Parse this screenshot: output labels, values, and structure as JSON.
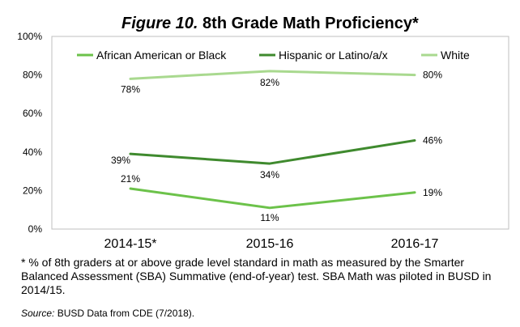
{
  "title_prefix": "Figure 10.",
  "title_main": " 8th Grade Math Proficiency*",
  "footnote": "* % of 8th graders at or above grade level standard in math as measured by the Smarter Balanced Assessment (SBA) Summative (end-of-year) test. SBA Math was piloted in BUSD in 2014/15.",
  "source_label": "Source:",
  "source_text": " BUSD Data from CDE (7/2018).",
  "chart_data": {
    "type": "line",
    "title": "Figure 10. 8th Grade Math Proficiency*",
    "categories": [
      "2014-15*",
      "2015-16",
      "2016-17"
    ],
    "ylim": [
      0,
      100
    ],
    "yticks": [
      0,
      20,
      40,
      60,
      80,
      100
    ],
    "ytick_labels": [
      "0%",
      "20%",
      "40%",
      "60%",
      "80%",
      "100%"
    ],
    "xlabel": "",
    "ylabel": "",
    "grid": false,
    "legend_position": "top",
    "series": [
      {
        "name": "African American or Black",
        "values": [
          21,
          11,
          19
        ],
        "labels": [
          "21%",
          "11%",
          "19%"
        ],
        "color": "#6cc24a"
      },
      {
        "name": "Hispanic or Latino/a/x",
        "values": [
          39,
          34,
          46
        ],
        "labels": [
          "39%",
          "34%",
          "46%"
        ],
        "color": "#3f8a2e"
      },
      {
        "name": "White",
        "values": [
          78,
          82,
          80
        ],
        "labels": [
          "78%",
          "82%",
          "80%"
        ],
        "color": "#a9d98f"
      }
    ]
  }
}
